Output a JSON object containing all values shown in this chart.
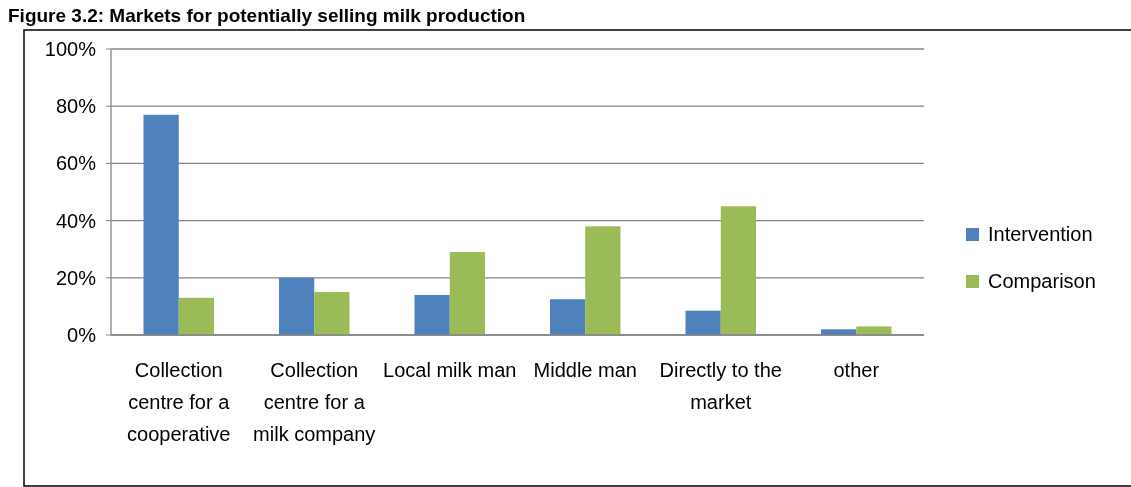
{
  "chart_data": {
    "type": "bar",
    "title": "Figure 3.2: Markets for potentially selling milk production",
    "categories": [
      "Collection centre for a cooperative",
      "Collection centre for a milk company",
      "Local milk man",
      "Middle man",
      "Directly to the market",
      "other"
    ],
    "series": [
      {
        "name": "Intervention",
        "color": "#4f81bd",
        "values": [
          77,
          20,
          14,
          12.5,
          8.5,
          2
        ]
      },
      {
        "name": "Comparison",
        "color": "#9bbb59",
        "values": [
          13,
          15,
          29,
          38,
          45,
          3
        ]
      }
    ],
    "ylim": [
      0,
      100
    ],
    "yticks": [
      {
        "value": 0,
        "label": "0%"
      },
      {
        "value": 20,
        "label": "20%"
      },
      {
        "value": 40,
        "label": "40%"
      },
      {
        "value": 60,
        "label": "60%"
      },
      {
        "value": 80,
        "label": "80%"
      },
      {
        "value": 100,
        "label": "100%"
      }
    ],
    "grid": "y",
    "legend": "right"
  }
}
